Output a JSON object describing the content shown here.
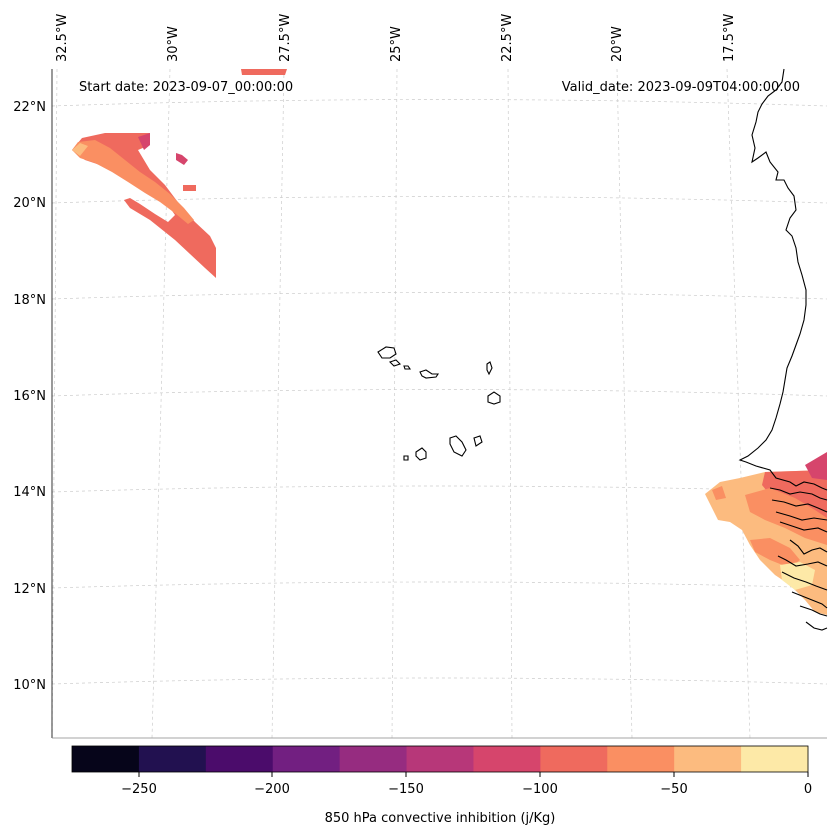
{
  "map": {
    "start_date": "Start date: 2023-09-07_00:00:00",
    "valid_date": "Valid_date: 2023-09-09T04:00:00.00",
    "lon_labels": [
      "32.5°W",
      "30°W",
      "27.5°W",
      "25°W",
      "22.5°W",
      "20°W",
      "17.5°W"
    ],
    "lat_labels": [
      "22°N",
      "20°N",
      "18°N",
      "16°N",
      "14°N",
      "12°N",
      "10°N"
    ]
  },
  "colorbar": {
    "title": "850 hPa convective inhibition (j/Kg)",
    "ticks": [
      "−250",
      "−200",
      "−150",
      "−100",
      "−50",
      "0"
    ],
    "colors": [
      "#06051a",
      "#221150",
      "#4b0c6b",
      "#721f81",
      "#962c80",
      "#b73779",
      "#d6456c",
      "#ef6a5e",
      "#fa8f62",
      "#fcbb7f",
      "#fde9a7"
    ]
  },
  "colors": {
    "cin_neg_125": "#d6456c",
    "cin_neg_100": "#ef6a5e",
    "cin_neg_75": "#fa8f62",
    "cin_neg_50": "#fcbb7f",
    "cin_neg_25": "#fde9a7"
  }
}
